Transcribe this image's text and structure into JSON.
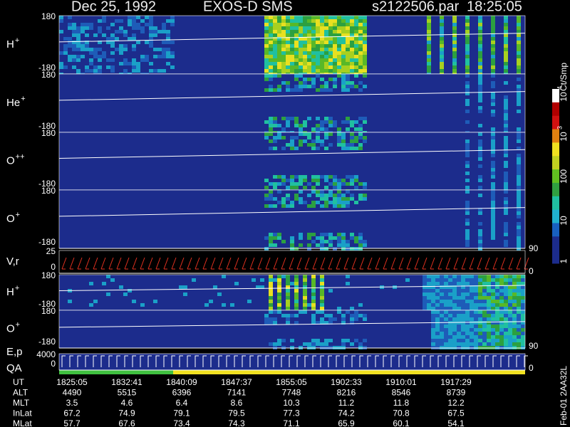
{
  "header": {
    "date": "Dec 25, 1992",
    "instrument": "EXOS-D SMS",
    "file": "s2122506.par",
    "time": "18:25:05"
  },
  "panels": [
    {
      "ion": "H",
      "charge": "+",
      "ticks": [
        "180",
        "-180"
      ]
    },
    {
      "ion": "He",
      "charge": "+",
      "ticks": [
        "180",
        "-180"
      ]
    },
    {
      "ion": "O",
      "charge": "++",
      "ticks": [
        "180",
        "-180"
      ]
    },
    {
      "ion": "O",
      "charge": "+",
      "ticks": [
        "180",
        "-180"
      ]
    },
    {
      "ion": "V,r",
      "ticks": [
        "25",
        "0"
      ],
      "right_ticks": [
        "90",
        "0"
      ]
    },
    {
      "ion": "H",
      "charge": "+",
      "ticks": [
        "180",
        "-180"
      ]
    },
    {
      "ion": "O",
      "charge": "+",
      "ticks": [
        "180",
        "-180"
      ],
      "right_ticks": [
        "90"
      ]
    },
    {
      "ion": "E,p",
      "ion2": "QA",
      "ticks": [
        "4000",
        "0"
      ],
      "right_ticks": [
        "0"
      ]
    }
  ],
  "colorbar": {
    "unit": "Ct/Smp",
    "ticks": [
      "1",
      "10",
      "100"
    ],
    "pow_ticks": [
      {
        "base": "10",
        "exp": "3"
      },
      {
        "base": "10",
        "exp": "4"
      }
    ]
  },
  "footer": {
    "rows": [
      {
        "label": "UT",
        "values": [
          "1825:05",
          "1832:41",
          "1840:09",
          "1847:37",
          "1855:05",
          "1902:33",
          "1910:01",
          "1917:29"
        ]
      },
      {
        "label": "ALT",
        "values": [
          "4490",
          "5515",
          "6396",
          "7141",
          "7748",
          "8216",
          "8546",
          "8739"
        ]
      },
      {
        "label": "MLT",
        "values": [
          "3.5",
          "4.6",
          "6.4",
          "8.6",
          "10.3",
          "11.2",
          "11.8",
          "12.2"
        ]
      },
      {
        "label": "InLat",
        "values": [
          "67.2",
          "74.9",
          "79.1",
          "79.5",
          "77.3",
          "74.2",
          "70.8",
          "67.5"
        ]
      },
      {
        "label": "MLat",
        "values": [
          "57.7",
          "67.6",
          "73.4",
          "74.3",
          "71.1",
          "65.9",
          "60.1",
          "54.1"
        ]
      }
    ]
  },
  "side_note": "Feb-01 2AA32L"
}
